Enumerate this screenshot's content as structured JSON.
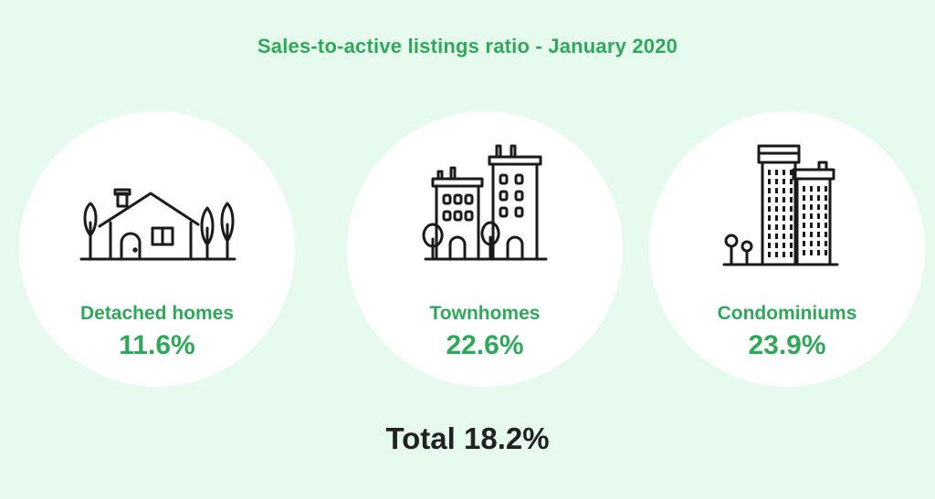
{
  "title": "Sales-to-active listings ratio - January 2020",
  "cards": [
    {
      "label": "Detached homes",
      "value": "11.6%",
      "icon": "house-icon"
    },
    {
      "label": "Townhomes",
      "value": "22.6%",
      "icon": "townhouses-icon"
    },
    {
      "label": "Condominiums",
      "value": "23.9%",
      "icon": "condo-towers-icon"
    }
  ],
  "total": "Total 18.2%",
  "colors": {
    "accent": "#2fa85a",
    "background": "#e6fbee",
    "card": "#ffffff",
    "text": "#222222"
  }
}
